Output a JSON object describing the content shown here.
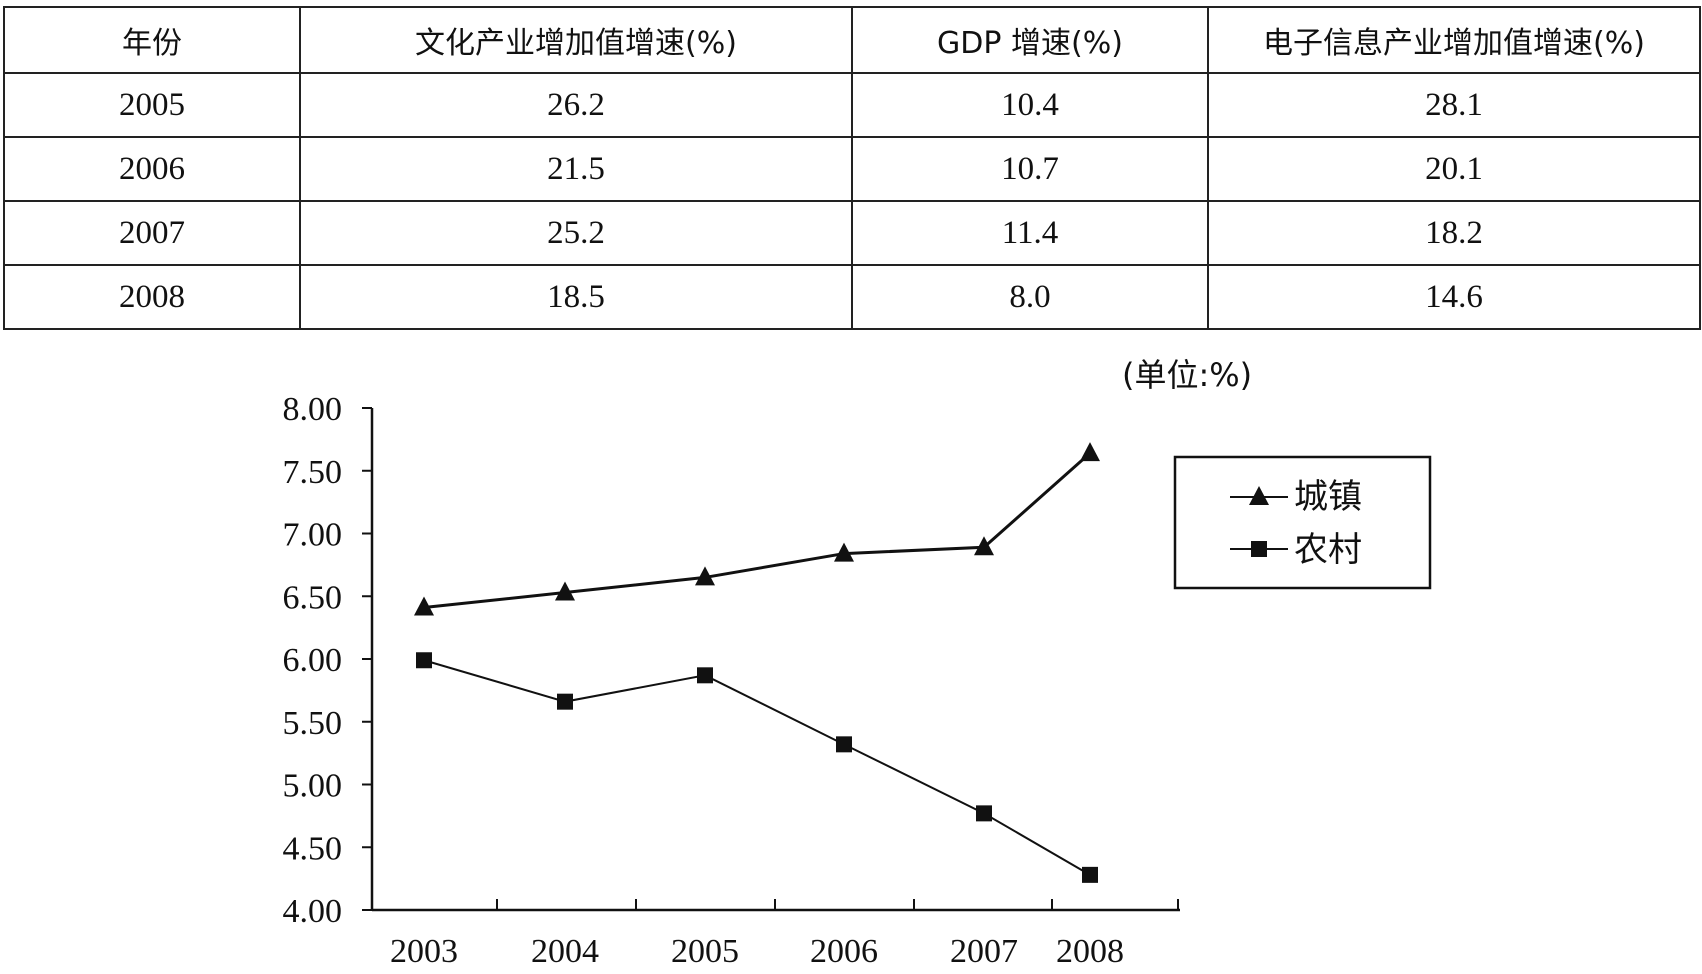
{
  "table": {
    "headers": [
      "年份",
      "文化产业增加值增速(%)",
      "GDP 增速(%)",
      "电子信息产业增加值增速(%)"
    ],
    "rows": [
      [
        "2005",
        "26.2",
        "10.4",
        "28.1"
      ],
      [
        "2006",
        "21.5",
        "10.7",
        "20.1"
      ],
      [
        "2007",
        "25.2",
        "11.4",
        "18.2"
      ],
      [
        "2008",
        "18.5",
        "8.0",
        "14.6"
      ]
    ]
  },
  "chart_data": {
    "type": "line",
    "unit_label": "(单位:%)",
    "x": [
      "2003",
      "2004",
      "2005",
      "2006",
      "2007",
      "2008"
    ],
    "y_ticks": [
      "8.00",
      "7.50",
      "7.00",
      "6.50",
      "6.00",
      "5.50",
      "5.00",
      "4.50",
      "4.00"
    ],
    "ylim": [
      4.0,
      8.0
    ],
    "legend_placement": "top-right",
    "grid": false,
    "series": [
      {
        "name": "城镇",
        "marker": "triangle",
        "values": [
          6.41,
          6.53,
          6.65,
          6.84,
          6.89,
          7.64
        ]
      },
      {
        "name": "农村",
        "marker": "square",
        "values": [
          5.99,
          5.66,
          5.87,
          5.32,
          4.77,
          4.28
        ]
      }
    ]
  }
}
